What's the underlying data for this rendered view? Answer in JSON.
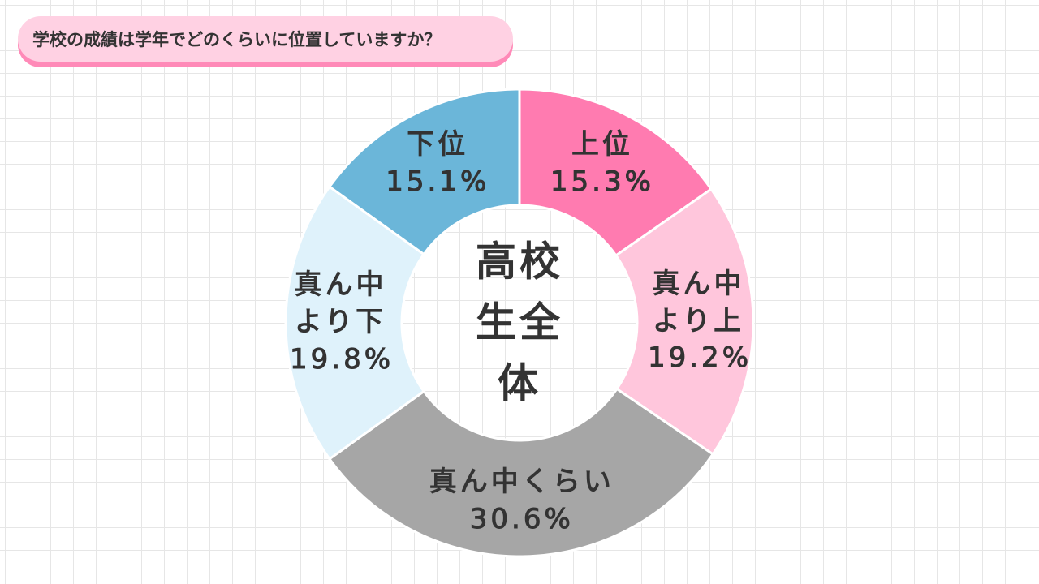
{
  "chart_data": {
    "type": "donut",
    "title": "学校の成績は学年でどのくらいに位置していますか？",
    "center_label": "高校生全体",
    "categories": [
      "上位",
      "真ん中より上",
      "真ん中くらい",
      "真ん中より下",
      "下位"
    ],
    "values": [
      15.3,
      19.2,
      30.6,
      19.8,
      15.1
    ],
    "value_labels": [
      "15.3%",
      "19.2%",
      "30.6%",
      "19.8%",
      "15.1%"
    ],
    "colors": [
      "#ff7bb0",
      "#ffc6dc",
      "#a6a6a6",
      "#dff2fb",
      "#6bb6d9"
    ]
  }
}
